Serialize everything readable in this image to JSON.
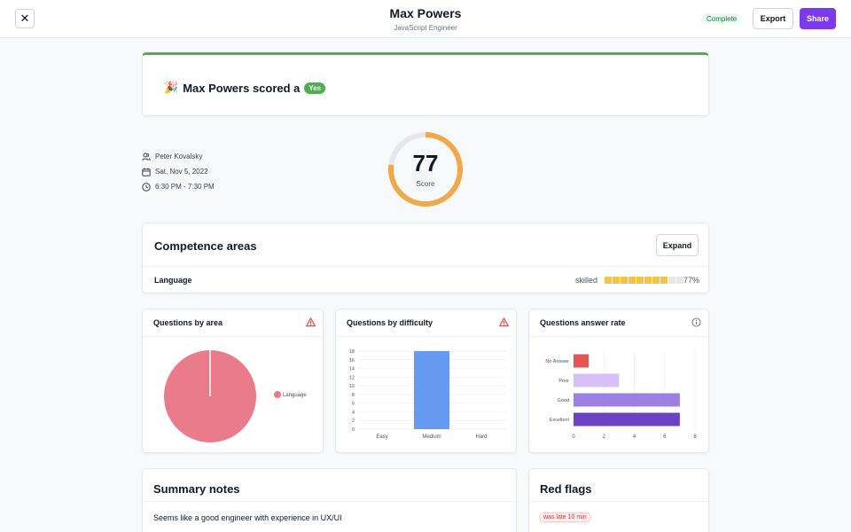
{
  "header": {
    "close_label": "✕",
    "name": "Max Powers",
    "role": "JavaScript Engineer",
    "status": "Complete",
    "export_label": "Export",
    "share_label": "Share"
  },
  "result": {
    "emoji": "🎉",
    "text": "Max Powers scored a",
    "badge": "Yes",
    "color": "#4caf50"
  },
  "meta": {
    "interviewer": "Peter Kovalsky",
    "date": "Sat, Nov 5, 2022",
    "time": "6:30 PM - 7:30 PM"
  },
  "score": {
    "value": "77",
    "label": "Score",
    "fraction": 0.77,
    "color": "#f0a94a"
  },
  "competence": {
    "title": "Competence areas",
    "expand_label": "Expand",
    "items": [
      {
        "name": "Language",
        "level": "skilled",
        "percent": "77%",
        "filled": 8,
        "total": 10
      }
    ]
  },
  "charts": {
    "by_area": {
      "title": "Questions by area",
      "icon": "warning-icon"
    },
    "by_difficulty": {
      "title": "Questions by difficulty",
      "icon": "warning-icon"
    },
    "answer_rate": {
      "title": "Questions answer rate",
      "icon": "info-icon"
    }
  },
  "chart_data": [
    {
      "type": "pie",
      "title": "Questions by area",
      "slices": [
        {
          "label": "Language",
          "value": 100,
          "color": "#ea7b8b"
        }
      ],
      "legend_position": "right"
    },
    {
      "type": "bar",
      "title": "Questions by difficulty",
      "categories": [
        "Easy",
        "Medium",
        "Hard"
      ],
      "values": [
        0,
        18,
        0
      ],
      "ylim": [
        0,
        18
      ],
      "yticks": [
        0,
        2,
        4,
        6,
        8,
        10,
        12,
        14,
        16,
        18
      ],
      "color": "#6699f0",
      "grid": true
    },
    {
      "type": "bar",
      "orientation": "horizontal",
      "title": "Questions answer rate",
      "categories": [
        "No Answer",
        "Poor",
        "Good",
        "Excellent"
      ],
      "values": [
        1,
        3,
        7,
        7
      ],
      "colors": [
        "#e85454",
        "#d7c0f5",
        "#9c7fe3",
        "#6a42c2"
      ],
      "xlim": [
        0,
        8
      ],
      "xticks": [
        0,
        2,
        4,
        6,
        8
      ],
      "grid": true
    }
  ],
  "summary": {
    "title": "Summary notes",
    "text": "Seems like a good engineer with experience in UX/UI"
  },
  "red_flags": {
    "title": "Red flags",
    "items": [
      "was late 10 min"
    ]
  }
}
